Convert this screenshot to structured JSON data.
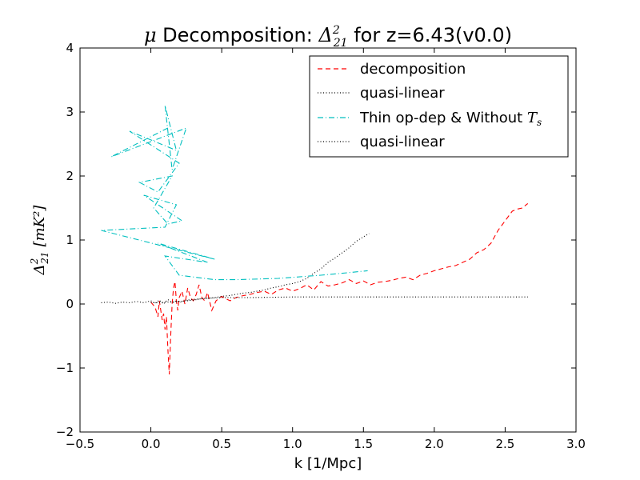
{
  "chart_data": {
    "type": "line",
    "title": {
      "prefix": "μ",
      "middle": " Decomposition: ",
      "delta": "Δ",
      "delta_sup": "2",
      "delta_sub": "21",
      "suffix": " for z=6.43(v0.0)"
    },
    "xlabel": "k [1/Mpc]",
    "ylabel": {
      "delta": "Δ",
      "sup": "2",
      "sub": "21",
      "units": "[mK²]"
    },
    "xlim": [
      -0.5,
      3.0
    ],
    "ylim": [
      -2,
      4
    ],
    "xticks": [
      "−0.5",
      "0.0",
      "0.5",
      "1.0",
      "1.5",
      "2.0",
      "2.5",
      "3.0"
    ],
    "xtick_values": [
      -0.5,
      0.0,
      0.5,
      1.0,
      1.5,
      2.0,
      2.5,
      3.0
    ],
    "yticks": [
      "−2",
      "−1",
      "0",
      "1",
      "2",
      "3",
      "4"
    ],
    "ytick_values": [
      -2,
      -1,
      0,
      1,
      2,
      3,
      4
    ],
    "grid": false,
    "legend_position": "top-right",
    "series": [
      {
        "name": "decomposition",
        "color": "#ff0000",
        "style": "dashed",
        "x": [
          0.0,
          0.03,
          0.05,
          0.06,
          0.07,
          0.08,
          0.09,
          0.1,
          0.11,
          0.12,
          0.13,
          0.14,
          0.15,
          0.16,
          0.17,
          0.18,
          0.19,
          0.2,
          0.22,
          0.24,
          0.26,
          0.28,
          0.3,
          0.32,
          0.34,
          0.36,
          0.38,
          0.4,
          0.43,
          0.46,
          0.5,
          0.53,
          0.56,
          0.6,
          0.65,
          0.7,
          0.75,
          0.8,
          0.85,
          0.9,
          0.95,
          1.0,
          1.05,
          1.1,
          1.15,
          1.2,
          1.25,
          1.3,
          1.35,
          1.4,
          1.45,
          1.5,
          1.55,
          1.6,
          1.65,
          1.7,
          1.75,
          1.8,
          1.85,
          1.9,
          1.95,
          2.0,
          2.05,
          2.1,
          2.15,
          2.2,
          2.25,
          2.3,
          2.35,
          2.4,
          2.45,
          2.5,
          2.55,
          2.58,
          2.62,
          2.66
        ],
        "y": [
          0.03,
          -0.05,
          -0.2,
          0.05,
          -0.1,
          -0.25,
          -0.15,
          -0.4,
          -0.2,
          -0.7,
          -1.1,
          -0.5,
          0.0,
          0.25,
          0.35,
          0.05,
          -0.1,
          0.1,
          0.2,
          0.0,
          0.25,
          0.1,
          0.05,
          0.15,
          0.3,
          0.1,
          0.05,
          0.18,
          -0.1,
          0.05,
          0.12,
          0.08,
          0.05,
          0.1,
          0.13,
          0.15,
          0.18,
          0.2,
          0.15,
          0.22,
          0.25,
          0.2,
          0.24,
          0.3,
          0.22,
          0.35,
          0.28,
          0.3,
          0.33,
          0.38,
          0.32,
          0.36,
          0.3,
          0.34,
          0.35,
          0.37,
          0.4,
          0.42,
          0.38,
          0.45,
          0.48,
          0.52,
          0.55,
          0.58,
          0.6,
          0.65,
          0.7,
          0.8,
          0.85,
          0.95,
          1.15,
          1.3,
          1.45,
          1.48,
          1.5,
          1.57
        ]
      },
      {
        "name": "quasi-linear",
        "color": "#000000",
        "style": "dotted",
        "x": [
          0.0,
          0.05,
          0.1,
          0.15,
          0.2,
          0.25,
          0.3,
          0.35,
          0.4,
          0.45,
          0.5,
          0.55,
          0.6,
          0.65,
          0.7,
          0.75,
          0.8,
          0.85,
          0.9,
          0.95,
          1.0,
          1.05,
          1.1,
          1.15,
          1.2,
          1.25,
          1.3,
          1.35,
          1.4,
          1.45,
          1.5,
          1.54
        ],
        "y": [
          0.02,
          0.02,
          0.03,
          0.03,
          0.04,
          0.05,
          0.06,
          0.08,
          0.09,
          0.1,
          0.12,
          0.13,
          0.15,
          0.17,
          0.18,
          0.2,
          0.22,
          0.25,
          0.27,
          0.3,
          0.32,
          0.35,
          0.4,
          0.48,
          0.55,
          0.65,
          0.72,
          0.8,
          0.88,
          0.98,
          1.05,
          1.1
        ]
      },
      {
        "name": "Thin op-dep & Without T_s",
        "color": "#00bfbf",
        "style": "dashdot",
        "x": [
          0.12,
          -0.28,
          0.25,
          0.15,
          0.1,
          0.18,
          -0.15,
          0.2,
          0.05,
          -0.08,
          0.15,
          0.02,
          0.12,
          0.22,
          -0.05,
          0.18,
          0.1,
          -0.35,
          0.45,
          0.05,
          0.4,
          0.1,
          0.2,
          0.38,
          0.45,
          0.6,
          0.9,
          1.2,
          1.35,
          1.53
        ],
        "y": [
          2.75,
          2.3,
          2.75,
          2.1,
          3.1,
          2.4,
          2.7,
          2.2,
          1.75,
          1.9,
          2.0,
          1.5,
          1.25,
          1.3,
          1.7,
          1.55,
          1.2,
          1.15,
          0.7,
          0.95,
          0.65,
          0.75,
          0.45,
          0.4,
          0.38,
          0.38,
          0.4,
          0.45,
          0.48,
          0.52
        ]
      },
      {
        "name": "quasi-linear",
        "color": "#000000",
        "style": "dotted",
        "x": [
          -0.35,
          -0.3,
          -0.25,
          -0.2,
          -0.15,
          -0.1,
          -0.05,
          0.0,
          0.03,
          0.06,
          0.09,
          0.12,
          0.15,
          0.18,
          0.21,
          0.25,
          0.3,
          0.35,
          0.4,
          0.5,
          0.7,
          1.0,
          1.5,
          2.0,
          2.5,
          2.66
        ],
        "y": [
          0.02,
          0.03,
          0.01,
          0.03,
          0.02,
          0.04,
          0.02,
          0.05,
          0.01,
          0.06,
          0.0,
          0.07,
          0.02,
          0.05,
          0.03,
          0.06,
          0.07,
          0.08,
          0.09,
          0.1,
          0.1,
          0.11,
          0.11,
          0.11,
          0.11,
          0.11
        ]
      }
    ],
    "legend": {
      "entries": [
        {
          "label": "decomposition"
        },
        {
          "label": "quasi-linear"
        },
        {
          "label_main": "Thin op-dep & Without ",
          "label_math": "T",
          "label_sub": "s"
        },
        {
          "label": "quasi-linear"
        }
      ]
    }
  }
}
